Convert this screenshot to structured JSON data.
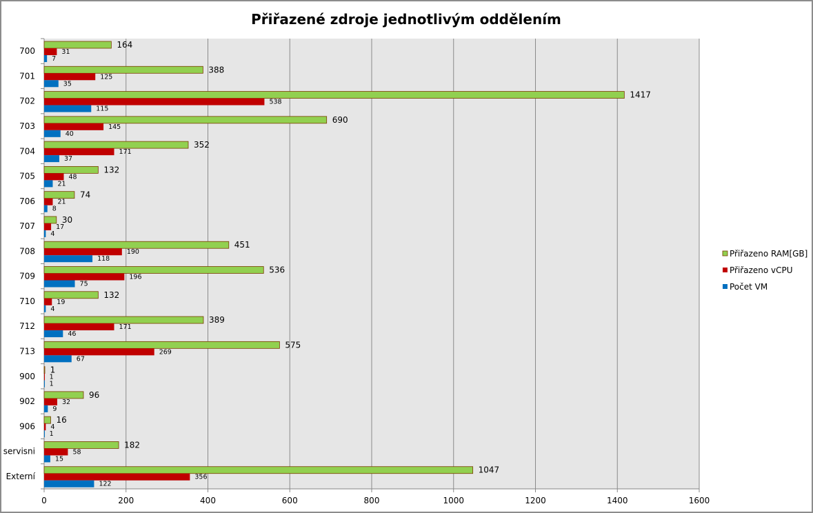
{
  "chart_data": {
    "type": "bar",
    "orientation": "horizontal",
    "title": "Přiřazené zdroje jednotlivým oddělením",
    "xlabel": "",
    "ylabel": "",
    "xlim": [
      0,
      1600
    ],
    "xticks": [
      0,
      200,
      400,
      600,
      800,
      1000,
      1200,
      1400,
      1600
    ],
    "grid": "vertical",
    "legend_position": "right",
    "categories": [
      "700",
      "701",
      "702",
      "703",
      "704",
      "705",
      "706",
      "707",
      "708",
      "709",
      "710",
      "712",
      "713",
      "900",
      "902",
      "906",
      "servisni",
      "Externí"
    ],
    "series": [
      {
        "name": "Přiřazeno RAM[GB]",
        "color": "#92d050",
        "values": [
          164,
          388,
          1417,
          690,
          352,
          132,
          74,
          30,
          451,
          536,
          132,
          389,
          575,
          1,
          96,
          16,
          182,
          1047
        ]
      },
      {
        "name": "Přiřazeno vCPU",
        "color": "#c00000",
        "values": [
          31,
          125,
          538,
          145,
          171,
          48,
          21,
          17,
          190,
          196,
          19,
          171,
          269,
          1,
          32,
          4,
          58,
          356
        ]
      },
      {
        "name": "Počet VM",
        "color": "#0070c0",
        "values": [
          7,
          35,
          115,
          40,
          37,
          21,
          8,
          4,
          118,
          75,
          4,
          46,
          67,
          1,
          9,
          1,
          15,
          122
        ]
      }
    ]
  }
}
